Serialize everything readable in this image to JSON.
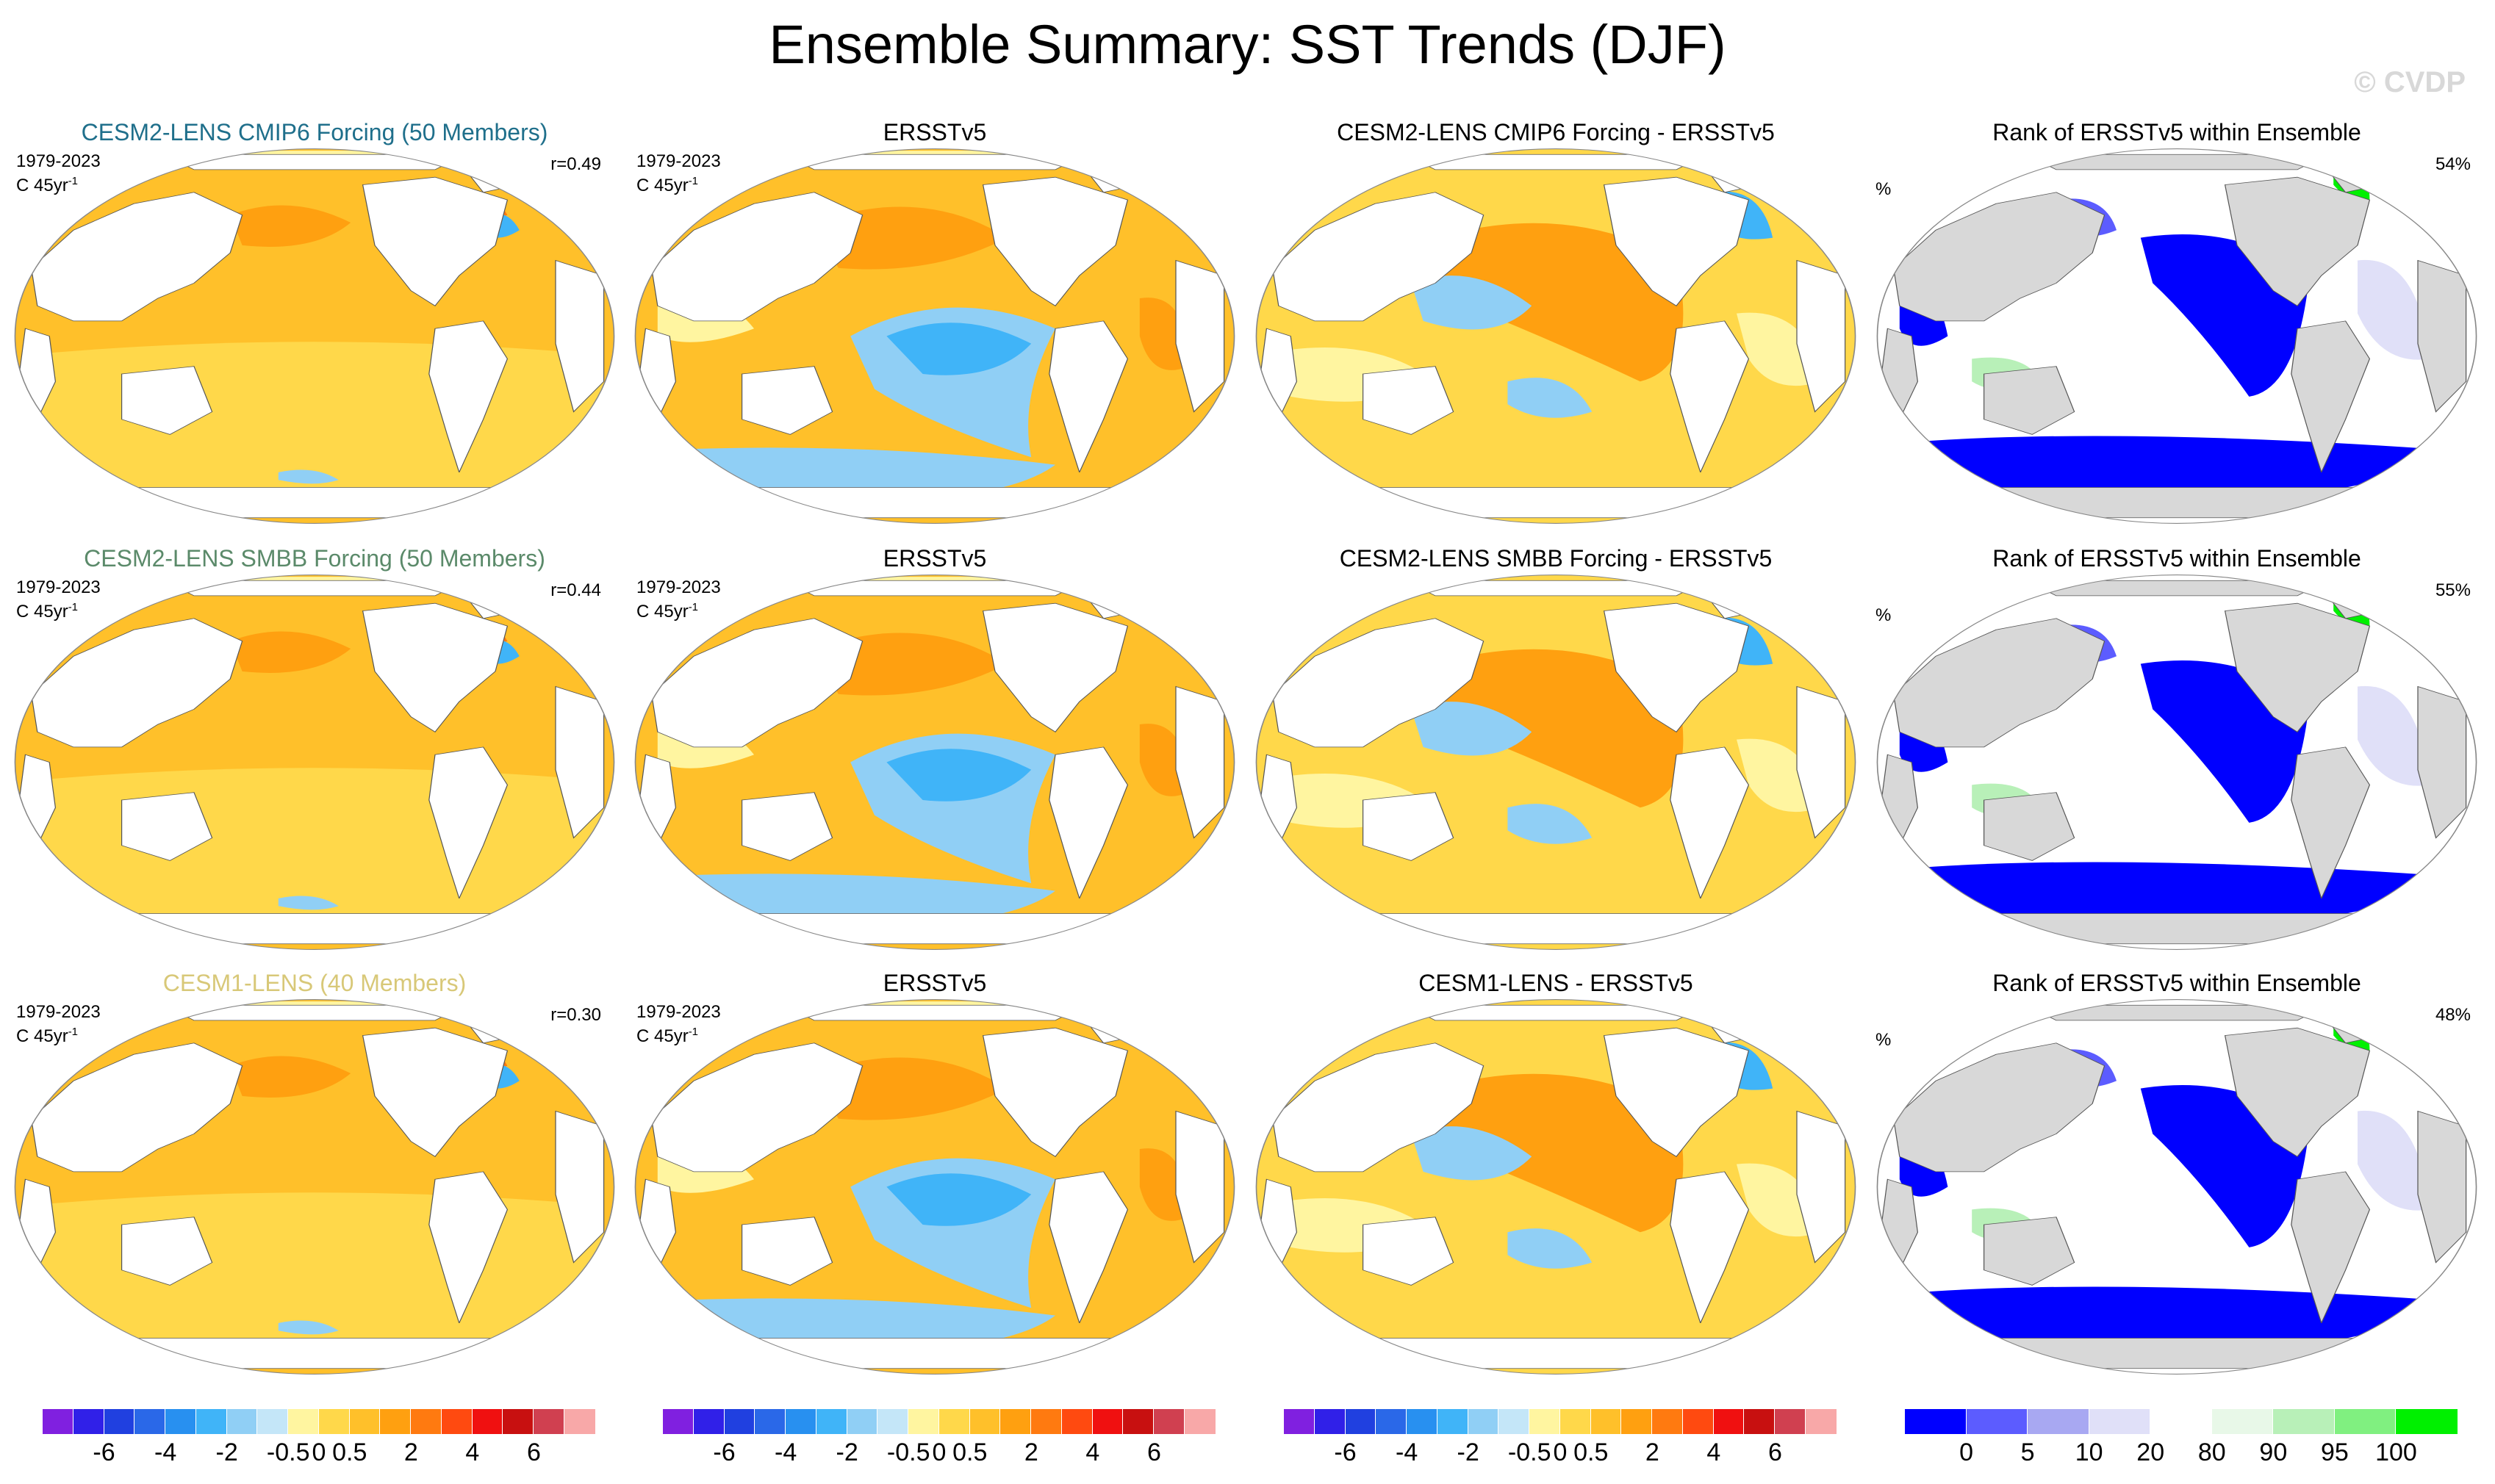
{
  "title": "Ensemble Summary: SST Trends (DJF)",
  "watermark": "© CVDP",
  "colors": {
    "diverging": [
      "#8020e0",
      "#3020e8",
      "#2040e0",
      "#2a68e8",
      "#2890f0",
      "#40b4f8",
      "#90cff5",
      "#c4e6f8",
      "#fff5a0",
      "#ffd84a",
      "#ffc02a",
      "#ffa010",
      "#ff7a10",
      "#ff4a10",
      "#f01010",
      "#c81010",
      "#d04050",
      "#f8a8a8"
    ],
    "rank": [
      "#0000ff",
      "#5c5cff",
      "#a8a8f2",
      "#e0e0f8",
      "#ffffff",
      "#e8f8e8",
      "#b8f0b8",
      "#80f080",
      "#00f000"
    ],
    "warm_fill": "#ffc02a",
    "cool_fill": "#40b4f8",
    "land": "#ffffff",
    "land_rank": "#d8d8d8"
  },
  "rows": [
    {
      "model": {
        "title": "CESM2-LENS CMIP6 Forcing (50 Members)",
        "title_color": "#1f6f8b",
        "period": "1979-2023",
        "units": "C 45yr",
        "units_sup": "-1",
        "corr": "r=0.49"
      },
      "obs": {
        "title": "ERSSTv5",
        "period": "1979-2023",
        "units": "C 45yr",
        "units_sup": "-1"
      },
      "diff": {
        "title": "CESM2-LENS CMIP6 Forcing - ERSSTv5"
      },
      "rank": {
        "title": "Rank of ERSSTv5 within Ensemble",
        "unit": "%",
        "pct": "54%"
      }
    },
    {
      "model": {
        "title": "CESM2-LENS SMBB Forcing (50 Members)",
        "title_color": "#5b8a6a",
        "period": "1979-2023",
        "units": "C 45yr",
        "units_sup": "-1",
        "corr": "r=0.44"
      },
      "obs": {
        "title": "ERSSTv5",
        "period": "1979-2023",
        "units": "C 45yr",
        "units_sup": "-1"
      },
      "diff": {
        "title": "CESM2-LENS SMBB Forcing - ERSSTv5"
      },
      "rank": {
        "title": "Rank of ERSSTv5 within Ensemble",
        "unit": "%",
        "pct": "55%"
      }
    },
    {
      "model": {
        "title": "CESM1-LENS (40 Members)",
        "title_color": "#d8c878",
        "period": "1979-2023",
        "units": "C 45yr",
        "units_sup": "-1",
        "corr": "r=0.30"
      },
      "obs": {
        "title": "ERSSTv5",
        "period": "1979-2023",
        "units": "C 45yr",
        "units_sup": "-1"
      },
      "diff": {
        "title": "CESM1-LENS - ERSSTv5"
      },
      "rank": {
        "title": "Rank of ERSSTv5 within Ensemble",
        "unit": "%",
        "pct": "48%"
      }
    }
  ],
  "colorbars": {
    "trend_labels": [
      "-6",
      "-4",
      "-2",
      "-0.5",
      "0",
      "0.5",
      "2",
      "4",
      "6"
    ],
    "rank_labels": [
      "0",
      "5",
      "10",
      "20",
      "80",
      "90",
      "95",
      "100"
    ]
  }
}
